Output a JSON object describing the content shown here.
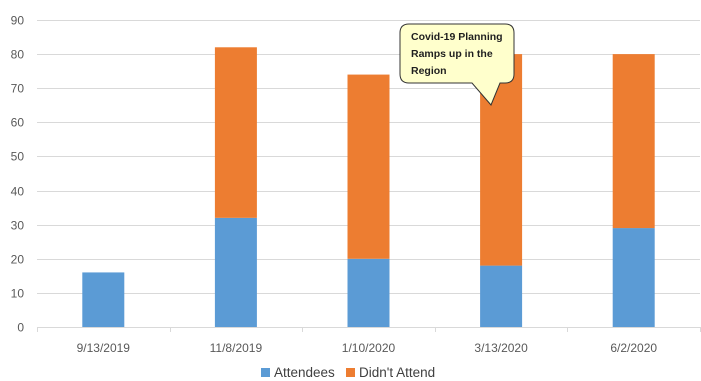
{
  "chart_data": {
    "type": "bar",
    "stacked": true,
    "categories": [
      "9/13/2019",
      "11/8/2019",
      "1/10/2020",
      "3/13/2020",
      "6/2/2020"
    ],
    "series": [
      {
        "name": "Attendees",
        "values": [
          16,
          32,
          20,
          18,
          29
        ],
        "color": "#5b9bd5"
      },
      {
        "name": "Didn't Attend",
        "values": [
          0,
          50,
          54,
          62,
          51
        ],
        "color": "#ed7d31"
      }
    ],
    "ylim": [
      0,
      90
    ],
    "yticks": [
      0,
      10,
      20,
      30,
      40,
      50,
      60,
      70,
      80,
      90
    ],
    "grid": true,
    "legend_position": "bottom",
    "annotation": {
      "lines": [
        "Covid-19 Planning",
        "Ramps up in the",
        "Region"
      ],
      "category": "3/13/2020",
      "fill": "#ffffcc",
      "border": "#333333"
    }
  }
}
